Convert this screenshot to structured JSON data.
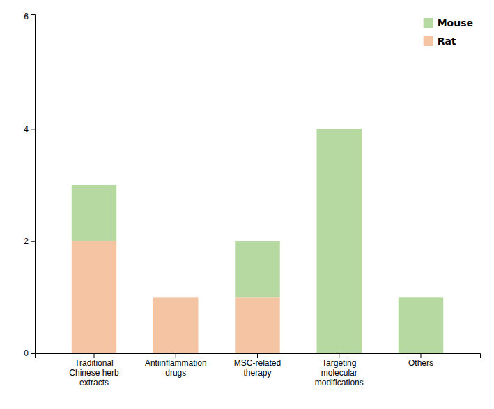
{
  "chart_data": {
    "type": "bar",
    "stacked": true,
    "categories": [
      "Traditional\nChinese herb\nextracts",
      "Antiinflammation\ndrugs",
      "MSC-related\ntherapy",
      "Targeting\nmolecular\nmodifications",
      "Others"
    ],
    "series": [
      {
        "name": "Rat",
        "color": "#f5c5a3",
        "values": [
          2,
          1,
          1,
          0,
          0
        ]
      },
      {
        "name": "Mouse",
        "color": "#b5d9a0",
        "values": [
          1,
          0,
          1,
          4,
          1
        ]
      }
    ],
    "ylim": [
      0,
      6.05
    ],
    "yticks": [
      0,
      2,
      4,
      6
    ],
    "grid": false,
    "legend": "upper right"
  }
}
